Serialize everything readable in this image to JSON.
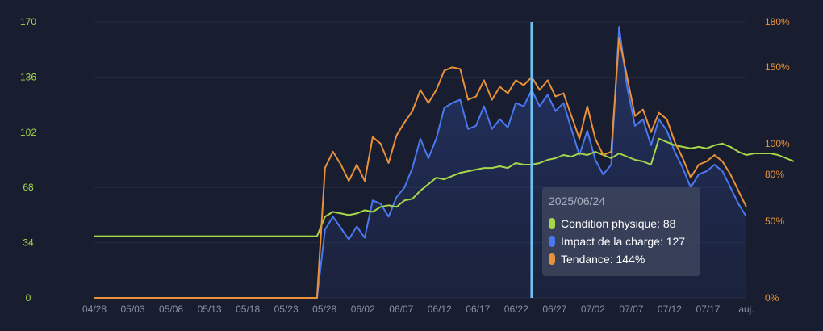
{
  "chart_data": {
    "type": "line",
    "x_labels": [
      "04/28",
      "05/03",
      "05/08",
      "05/13",
      "05/18",
      "05/23",
      "05/28",
      "06/02",
      "06/07",
      "06/12",
      "06/17",
      "06/22",
      "06/27",
      "07/02",
      "07/07",
      "07/12",
      "07/17",
      "auj."
    ],
    "y_left": {
      "min": 0,
      "max": 170,
      "ticks": [
        0,
        34,
        68,
        102,
        136,
        170
      ],
      "color": "#a6d64a"
    },
    "y_right": {
      "ticks": [
        "0%",
        "50%",
        "80%",
        "100%",
        "150%",
        "180%"
      ],
      "color": "#e8913a"
    },
    "series": [
      {
        "name": "Condition physique",
        "color": "#a6d64a",
        "axis": "left",
        "points": [
          [
            0,
            38
          ],
          [
            28,
            38
          ],
          [
            29,
            50
          ],
          [
            30,
            53
          ],
          [
            31,
            52
          ],
          [
            32,
            51
          ],
          [
            33,
            52
          ],
          [
            34,
            54
          ],
          [
            35,
            53
          ],
          [
            36,
            56
          ],
          [
            37,
            57
          ],
          [
            38,
            56
          ],
          [
            39,
            60
          ],
          [
            40,
            61
          ],
          [
            41,
            66
          ],
          [
            42,
            70
          ],
          [
            43,
            74
          ],
          [
            44,
            73
          ],
          [
            45,
            75
          ],
          [
            46,
            77
          ],
          [
            47,
            78
          ],
          [
            48,
            79
          ],
          [
            49,
            80
          ],
          [
            50,
            80
          ],
          [
            51,
            81
          ],
          [
            52,
            80
          ],
          [
            53,
            83
          ],
          [
            54,
            82
          ],
          [
            55,
            82
          ],
          [
            56,
            83
          ],
          [
            57,
            85
          ],
          [
            58,
            86
          ],
          [
            59,
            88
          ],
          [
            60,
            87
          ],
          [
            61,
            89
          ],
          [
            62,
            88
          ],
          [
            63,
            90
          ],
          [
            64,
            88
          ],
          [
            65,
            86
          ],
          [
            66,
            89
          ],
          [
            67,
            87
          ],
          [
            68,
            85
          ],
          [
            69,
            84
          ],
          [
            70,
            82
          ],
          [
            71,
            98
          ],
          [
            72,
            96
          ],
          [
            73,
            94
          ],
          [
            74,
            93
          ],
          [
            75,
            92
          ],
          [
            76,
            93
          ],
          [
            77,
            92
          ],
          [
            78,
            94
          ],
          [
            79,
            95
          ],
          [
            80,
            93
          ],
          [
            81,
            90
          ],
          [
            82,
            88
          ],
          [
            83,
            89
          ],
          [
            84,
            89
          ],
          [
            85,
            89
          ],
          [
            86,
            88
          ],
          [
            87,
            86
          ],
          [
            88,
            84
          ]
        ]
      },
      {
        "name": "Impact de la charge",
        "color": "#4a78f0",
        "axis": "left",
        "points": [
          [
            0,
            0
          ],
          [
            28,
            0
          ],
          [
            29,
            42
          ],
          [
            30,
            50
          ],
          [
            31,
            43
          ],
          [
            32,
            36
          ],
          [
            33,
            44
          ],
          [
            34,
            37
          ],
          [
            35,
            60
          ],
          [
            36,
            58
          ],
          [
            37,
            50
          ],
          [
            38,
            62
          ],
          [
            39,
            68
          ],
          [
            40,
            80
          ],
          [
            41,
            98
          ],
          [
            42,
            86
          ],
          [
            43,
            98
          ],
          [
            44,
            117
          ],
          [
            45,
            120
          ],
          [
            46,
            122
          ],
          [
            47,
            104
          ],
          [
            48,
            106
          ],
          [
            49,
            118
          ],
          [
            50,
            104
          ],
          [
            51,
            110
          ],
          [
            52,
            105
          ],
          [
            53,
            120
          ],
          [
            54,
            118
          ],
          [
            55,
            128
          ],
          [
            56,
            118
          ],
          [
            57,
            125
          ],
          [
            58,
            115
          ],
          [
            59,
            120
          ],
          [
            60,
            104
          ],
          [
            61,
            88
          ],
          [
            62,
            103
          ],
          [
            63,
            85
          ],
          [
            64,
            76
          ],
          [
            65,
            82
          ],
          [
            66,
            167
          ],
          [
            67,
            130
          ],
          [
            68,
            106
          ],
          [
            69,
            110
          ],
          [
            70,
            94
          ],
          [
            71,
            110
          ],
          [
            72,
            103
          ],
          [
            73,
            90
          ],
          [
            74,
            80
          ],
          [
            75,
            68
          ],
          [
            76,
            76
          ],
          [
            77,
            78
          ],
          [
            78,
            82
          ],
          [
            79,
            78
          ],
          [
            80,
            68
          ],
          [
            81,
            58
          ],
          [
            82,
            50
          ]
        ]
      },
      {
        "name": "Tendance",
        "color": "#e8913a",
        "axis": "left",
        "points": [
          [
            0,
            0
          ],
          [
            28,
            0
          ],
          [
            29,
            80
          ],
          [
            30,
            90
          ],
          [
            31,
            82
          ],
          [
            32,
            72
          ],
          [
            33,
            82
          ],
          [
            34,
            72
          ],
          [
            35,
            99
          ],
          [
            36,
            95
          ],
          [
            37,
            83
          ],
          [
            38,
            100
          ],
          [
            39,
            108
          ],
          [
            40,
            115
          ],
          [
            41,
            128
          ],
          [
            42,
            120
          ],
          [
            43,
            128
          ],
          [
            44,
            140
          ],
          [
            45,
            142
          ],
          [
            46,
            141
          ],
          [
            47,
            122
          ],
          [
            48,
            124
          ],
          [
            49,
            134
          ],
          [
            50,
            122
          ],
          [
            51,
            130
          ],
          [
            52,
            126
          ],
          [
            53,
            134
          ],
          [
            54,
            131
          ],
          [
            55,
            136
          ],
          [
            56,
            128
          ],
          [
            57,
            134
          ],
          [
            58,
            124
          ],
          [
            59,
            126
          ],
          [
            60,
            112
          ],
          [
            61,
            98
          ],
          [
            62,
            118
          ],
          [
            63,
            98
          ],
          [
            64,
            88
          ],
          [
            65,
            90
          ],
          [
            66,
            160
          ],
          [
            67,
            136
          ],
          [
            68,
            112
          ],
          [
            69,
            116
          ],
          [
            70,
            102
          ],
          [
            71,
            114
          ],
          [
            72,
            110
          ],
          [
            73,
            96
          ],
          [
            74,
            86
          ],
          [
            75,
            74
          ],
          [
            76,
            82
          ],
          [
            77,
            84
          ],
          [
            78,
            88
          ],
          [
            79,
            84
          ],
          [
            80,
            76
          ],
          [
            81,
            66
          ],
          [
            82,
            56
          ]
        ]
      }
    ],
    "highlight_index": 55,
    "tooltip": {
      "date": "2025/06/24",
      "rows": [
        {
          "label": "Condition physique: 88",
          "color": "#a6d64a"
        },
        {
          "label": "Impact de la charge: 127",
          "color": "#4a78f0"
        },
        {
          "label": "Tendance: 144%",
          "color": "#e8913a"
        }
      ]
    }
  }
}
